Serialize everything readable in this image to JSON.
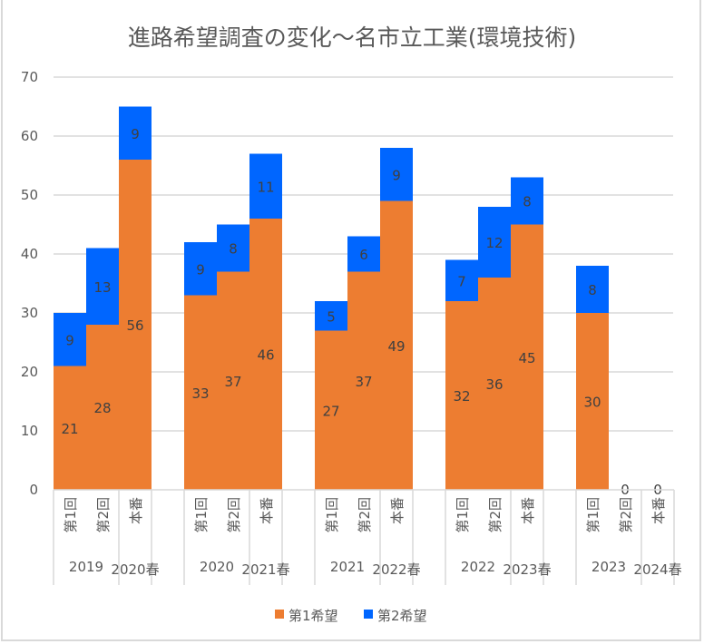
{
  "chart_data": {
    "type": "bar",
    "stacked": true,
    "title": "進路希望調査の変化～名市立工業(環境技術)",
    "xlabel": "",
    "ylabel": "",
    "ylim": [
      0,
      70
    ],
    "yticks": [
      "0",
      "10",
      "20",
      "30",
      "40",
      "50",
      "60",
      "70"
    ],
    "grid": true,
    "legend_position": "bottom",
    "groups": [
      {
        "labels": [
          "2019",
          "2020春"
        ],
        "categories": [
          "第1回",
          "第2回",
          "本番"
        ]
      },
      {
        "labels": [
          "2020",
          "2021春"
        ],
        "categories": [
          "第1回",
          "第2回",
          "本番"
        ]
      },
      {
        "labels": [
          "2021",
          "2022春"
        ],
        "categories": [
          "第1回",
          "第2回",
          "本番"
        ]
      },
      {
        "labels": [
          "2022",
          "2023春"
        ],
        "categories": [
          "第1回",
          "第2回",
          "本番"
        ]
      },
      {
        "labels": [
          "2023",
          "2024春"
        ],
        "categories": [
          "第1回",
          "第2回",
          "本番"
        ]
      }
    ],
    "series": [
      {
        "name": "第1希望",
        "color": "#ED7D31",
        "values": [
          [
            21,
            28,
            56
          ],
          [
            33,
            37,
            46
          ],
          [
            27,
            37,
            49
          ],
          [
            32,
            36,
            45
          ],
          [
            30,
            0,
            0
          ]
        ]
      },
      {
        "name": "第2希望",
        "color": "#0066FF",
        "values": [
          [
            9,
            13,
            9
          ],
          [
            9,
            8,
            11
          ],
          [
            5,
            6,
            9
          ],
          [
            7,
            12,
            8
          ],
          [
            8,
            0,
            0
          ]
        ]
      }
    ]
  }
}
